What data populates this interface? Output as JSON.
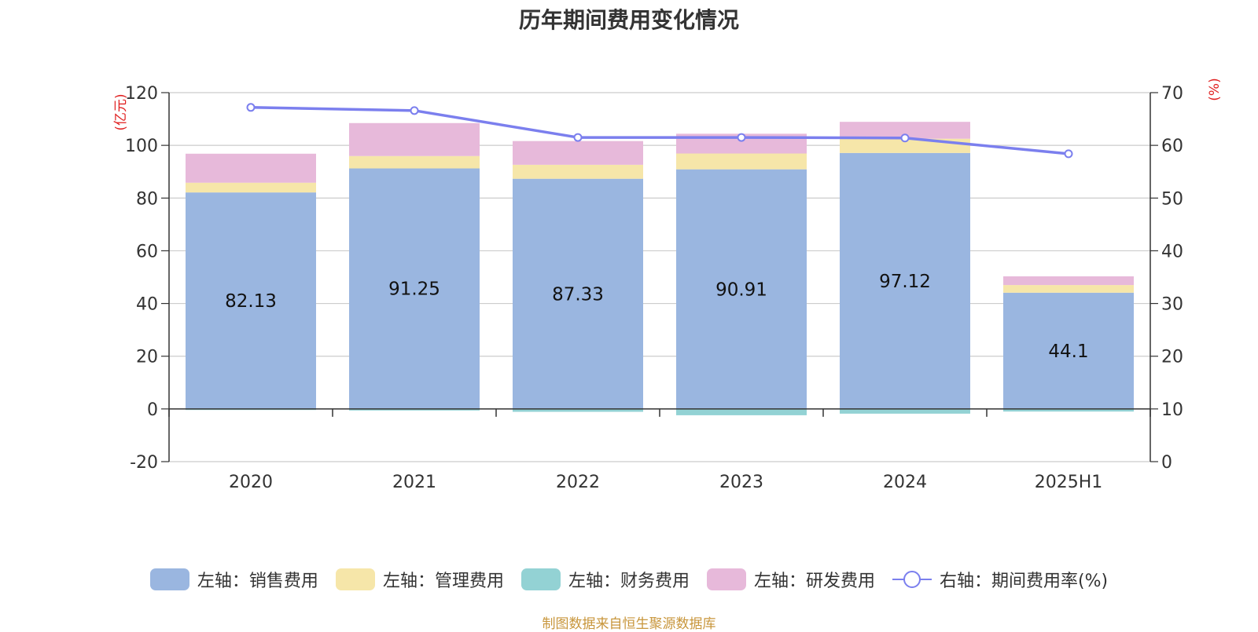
{
  "chart_data": {
    "type": "bar",
    "title": "历年期间费用变化情况",
    "source": "制图数据来自恒生聚源数据库",
    "categories": [
      "2020",
      "2021",
      "2022",
      "2023",
      "2024",
      "2025H1"
    ],
    "y_left": {
      "unit": "(亿元)",
      "ticks": [
        "120",
        "100",
        "80",
        "60",
        "40",
        "20",
        "0",
        "-20"
      ],
      "range": [
        -20,
        120
      ]
    },
    "y_right": {
      "unit": "(%)",
      "ticks": [
        "70",
        "60",
        "50",
        "40",
        "30",
        "20",
        "10",
        "0"
      ],
      "range": [
        0,
        70
      ]
    },
    "stacked": true,
    "series": [
      {
        "name": "左轴：销售费用",
        "axis": "left",
        "color": "#9ab6e0",
        "values": [
          82.13,
          91.25,
          87.33,
          90.91,
          97.12,
          44.1
        ],
        "labels": [
          "82.13",
          "91.25",
          "87.33",
          "90.91",
          "97.12",
          "44.1"
        ]
      },
      {
        "name": "左轴：管理费用",
        "axis": "left",
        "color": "#f6e6a9",
        "values": [
          3.7,
          4.7,
          5.3,
          6.0,
          5.4,
          2.9
        ]
      },
      {
        "name": "左轴：财务费用",
        "axis": "left",
        "color": "#93d2d4",
        "values": [
          -0.4,
          -0.6,
          -1.1,
          -2.4,
          -1.8,
          -1.0
        ]
      },
      {
        "name": "左轴：研发费用",
        "axis": "left",
        "color": "#e7b9da",
        "values": [
          11.0,
          12.5,
          9.0,
          7.5,
          6.4,
          3.3
        ]
      },
      {
        "name": "右轴：期间费用率(%)",
        "axis": "right",
        "type": "line",
        "color": "#7b7fee",
        "values": [
          67.2,
          66.6,
          61.5,
          61.5,
          61.4,
          58.4
        ]
      }
    ],
    "grid": true,
    "legend_position": "bottom"
  }
}
